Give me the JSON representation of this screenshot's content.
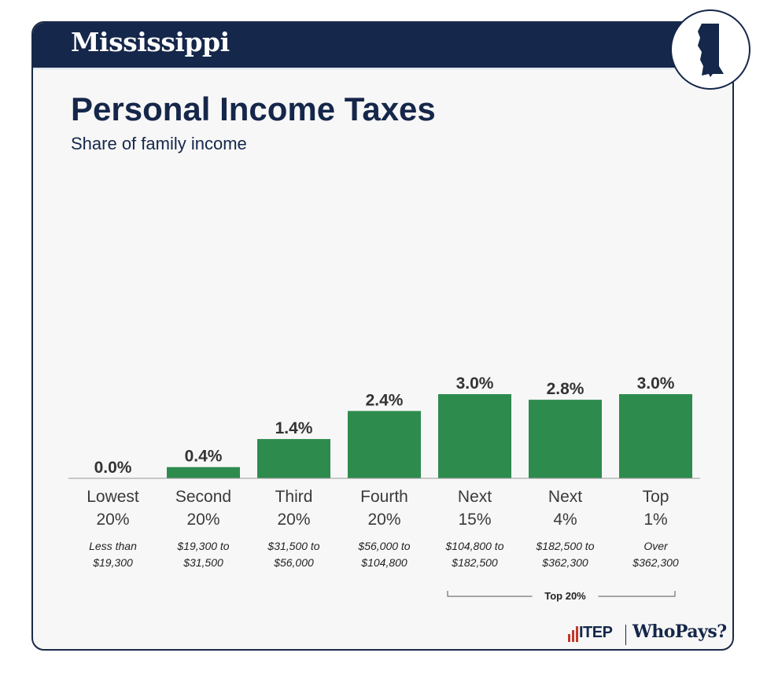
{
  "header": {
    "state_name": "Mississippi",
    "state_icon": "mississippi-state-icon"
  },
  "chart_data": {
    "type": "bar",
    "title": "Personal Income Taxes",
    "subtitle": "Share of family income",
    "categories": [
      {
        "group": [
          "Lowest",
          "20%"
        ],
        "range": [
          "Less than",
          "$19,300"
        ]
      },
      {
        "group": [
          "Second",
          "20%"
        ],
        "range": [
          "$19,300 to",
          "$31,500"
        ]
      },
      {
        "group": [
          "Third",
          "20%"
        ],
        "range": [
          "$31,500 to",
          "$56,000"
        ]
      },
      {
        "group": [
          "Fourth",
          "20%"
        ],
        "range": [
          "$56,000 to",
          "$104,800"
        ]
      },
      {
        "group": [
          "Next",
          "15%"
        ],
        "range": [
          "$104,800 to",
          "$182,500"
        ]
      },
      {
        "group": [
          "Next",
          "4%"
        ],
        "range": [
          "$182,500 to",
          "$362,300"
        ]
      },
      {
        "group": [
          "Top",
          "1%"
        ],
        "range": [
          "Over",
          "$362,300"
        ]
      }
    ],
    "values": [
      0.0,
      0.4,
      1.4,
      2.4,
      3.0,
      2.8,
      3.0
    ],
    "value_labels": [
      "0.0%",
      "0.4%",
      "1.4%",
      "2.4%",
      "3.0%",
      "2.8%",
      "3.0%"
    ],
    "ylim": [
      0,
      3.0
    ],
    "grid": false,
    "bar_color": "#2e8b4e",
    "bracket": {
      "label": "Top 20%",
      "from_index": 4,
      "to_index": 6
    }
  },
  "branding": {
    "itep": "ITEP",
    "whopays": "WhoPays?"
  },
  "colors": {
    "navy": "#15274a",
    "green": "#2e8b4e",
    "background": "#f7f7f7",
    "bar_label": "#333333"
  }
}
